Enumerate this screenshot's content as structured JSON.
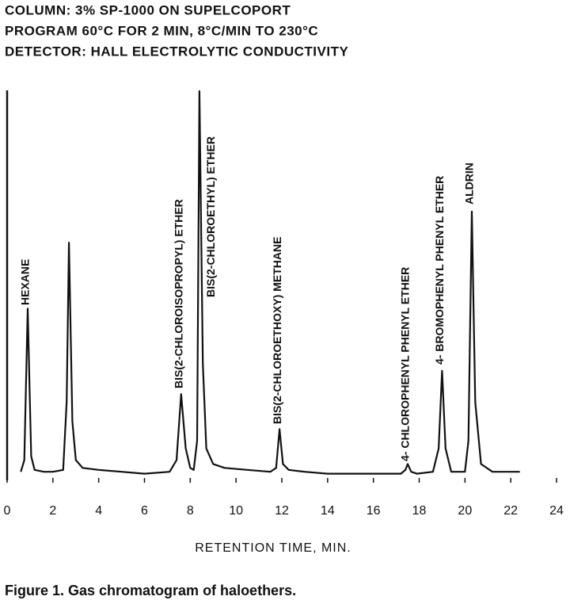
{
  "chart_data": {
    "type": "line",
    "subtitle_lines": [
      "COLUMN:  3% SP-1000 ON SUPELCOPORT",
      "PROGRAM 60°C FOR 2 MIN, 8°C/MIN TO 230°C",
      "DETECTOR:  HALL ELECTROLYTIC CONDUCTIVITY"
    ],
    "x_label": "RETENTION TIME, MIN.",
    "title": "Figure 1.  Gas chromatogram of haloethers.",
    "xlim": [
      0,
      24
    ],
    "xticks": [
      0,
      2,
      4,
      6,
      8,
      10,
      12,
      14,
      16,
      18,
      20,
      22,
      24
    ],
    "ylim": [
      0,
      100
    ],
    "series": [
      {
        "color": "#111111",
        "x": [
          0.6,
          0.75,
          0.9,
          1.05,
          1.2,
          1.6,
          2.0,
          2.45,
          2.6,
          2.7,
          2.85,
          3.0,
          3.3,
          4,
          5,
          6,
          7.1,
          7.4,
          7.6,
          7.8,
          8.0,
          8.15,
          8.3,
          8.4,
          8.55,
          8.7,
          9.0,
          9.5,
          10.5,
          11.5,
          11.75,
          11.9,
          12.05,
          12.3,
          13,
          14,
          15,
          16,
          17.2,
          17.4,
          17.5,
          17.65,
          17.9,
          18.6,
          18.85,
          19.0,
          19.15,
          19.4,
          20.0,
          20.15,
          20.3,
          20.45,
          20.7,
          21.2,
          22.4
        ],
        "values": [
          2,
          5,
          44,
          6,
          2.5,
          2,
          2,
          2.5,
          20,
          61,
          15,
          5,
          3,
          2.5,
          2,
          1.5,
          2,
          5,
          22,
          8,
          3,
          2.5,
          10,
          100,
          30,
          8,
          4,
          3,
          2.5,
          2,
          3,
          13,
          4,
          2.5,
          2,
          1.5,
          1.5,
          1.5,
          1.5,
          2.5,
          4,
          2,
          1.5,
          2,
          8,
          28,
          8,
          2,
          2,
          10,
          69,
          20,
          4,
          2,
          2
        ]
      }
    ],
    "annotations": [
      "HEXANE",
      "BIS(2-CHLOROISOPROPYL) ETHER",
      "BIS(2-CHLOROETHYL) ETHER",
      "BIS(2-CHLOROETHOXY) METHANE",
      "4- CHLOROPHENYL PHENYL ETHER",
      "4- BROMOPHENYL PHENYL ETHER",
      "ALDRIN"
    ]
  }
}
